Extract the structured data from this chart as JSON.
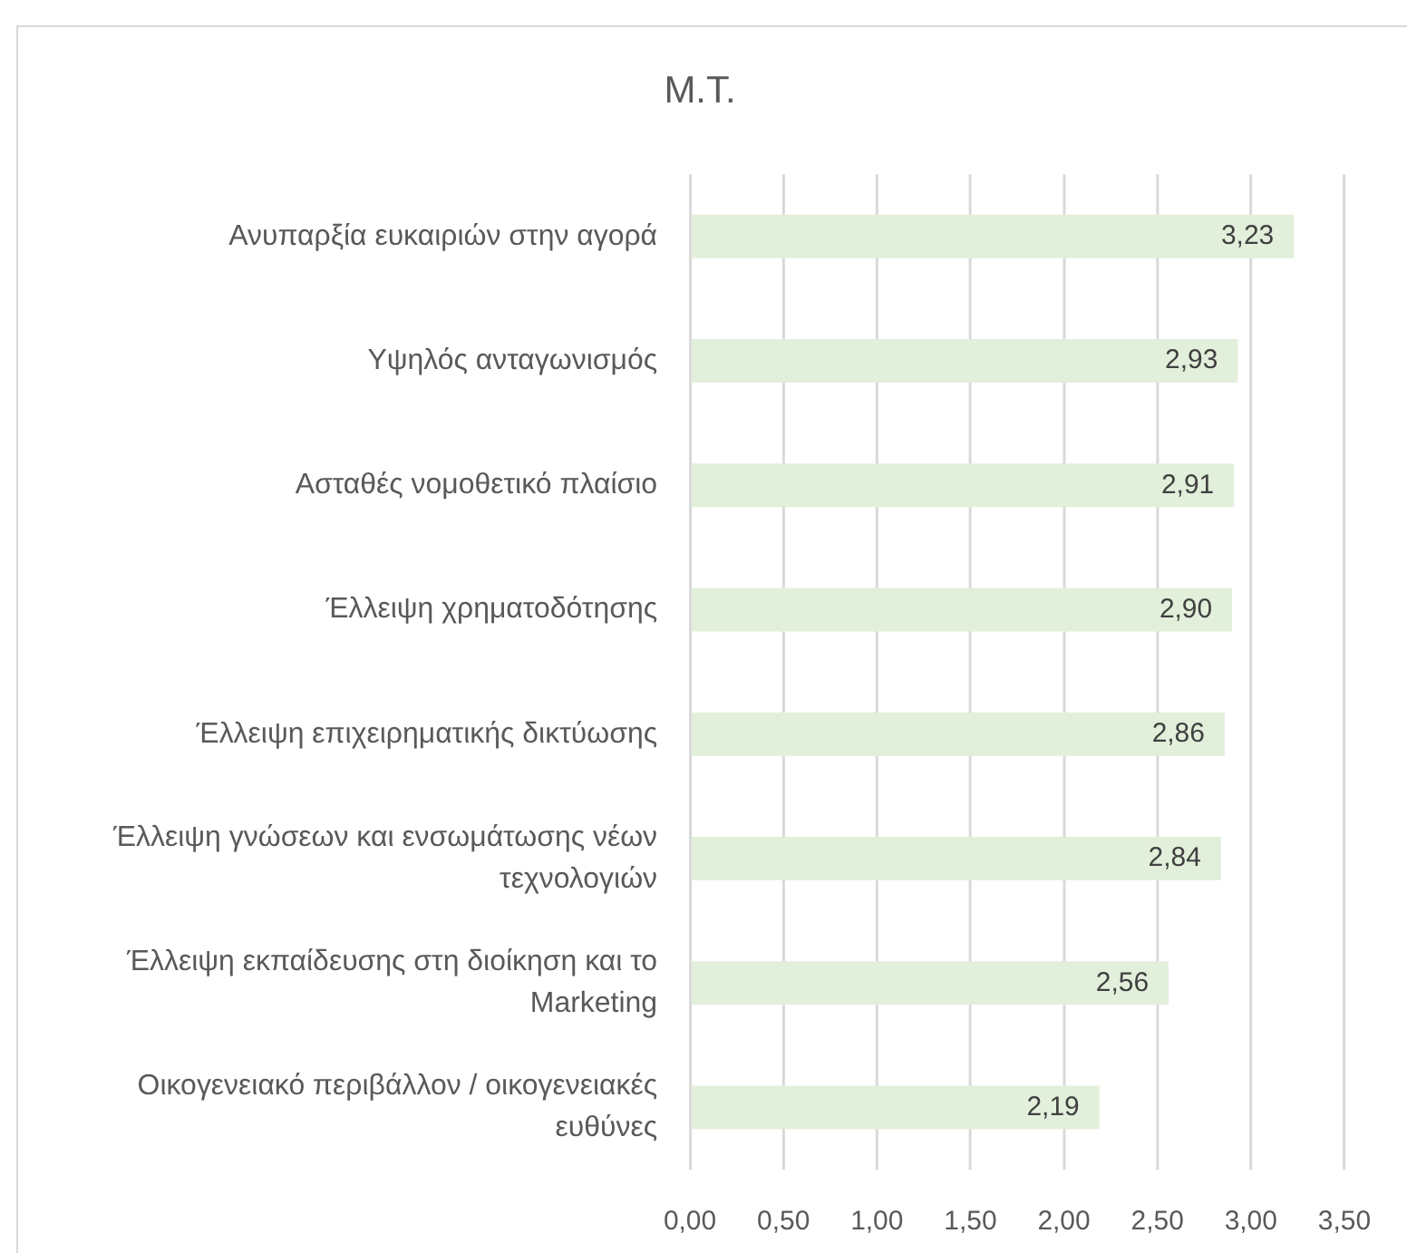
{
  "chart_data": {
    "type": "bar",
    "orientation": "horizontal",
    "title": "Μ.Τ.",
    "categories": [
      "Ανυπαρξία ευκαιριών στην αγορά",
      "Υψηλός ανταγωνισμός",
      "Ασταθές νομοθετικό πλαίσιο",
      "Έλλειψη χρηματοδότησης",
      "Έλλειψη επιχειρηματικής δικτύωσης",
      "Έλλειψη γνώσεων και ενσωμάτωσης νέων τεχνολογιών",
      "Έλλειψη εκπαίδευσης στη διοίκηση και το Marketing",
      "Οικογενειακό περιβάλλον / οικογενειακές ευθύνες"
    ],
    "values": [
      3.23,
      2.93,
      2.91,
      2.9,
      2.86,
      2.84,
      2.56,
      2.19
    ],
    "value_labels": [
      "3,23",
      "2,93",
      "2,91",
      "2,90",
      "2,86",
      "2,84",
      "2,56",
      "2,19"
    ],
    "color": "#e2efda",
    "xlim": [
      0,
      3.5
    ],
    "xticks": [
      {
        "value": 0,
        "label": "0,00"
      },
      {
        "value": 0.5,
        "label": "0,50"
      },
      {
        "value": 1,
        "label": "1,00"
      },
      {
        "value": 1.5,
        "label": "1,50"
      },
      {
        "value": 2,
        "label": "2,00"
      },
      {
        "value": 2.5,
        "label": "2,50"
      },
      {
        "value": 3,
        "label": "3,00"
      },
      {
        "value": 3.5,
        "label": "3,50"
      }
    ],
    "grid": "x"
  }
}
